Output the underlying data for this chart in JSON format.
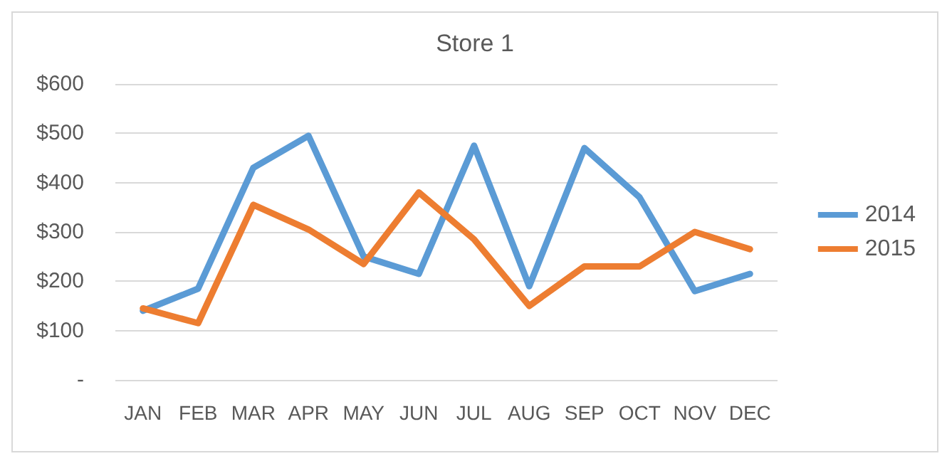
{
  "chart_data": {
    "type": "line",
    "title": "Store 1",
    "categories": [
      "JAN",
      "FEB",
      "MAR",
      "APR",
      "MAY",
      "JUN",
      "JUL",
      "AUG",
      "SEP",
      "OCT",
      "NOV",
      "DEC"
    ],
    "series": [
      {
        "name": "2014",
        "color": "#5b9bd5",
        "values": [
          140,
          185,
          430,
          495,
          250,
          215,
          475,
          190,
          470,
          370,
          180,
          215
        ]
      },
      {
        "name": "2015",
        "color": "#ed7d31",
        "values": [
          145,
          115,
          355,
          305,
          235,
          380,
          285,
          150,
          230,
          230,
          300,
          265
        ]
      }
    ],
    "ylim": [
      0,
      600
    ],
    "yticks": [
      {
        "value": 0,
        "label": "-"
      },
      {
        "value": 100,
        "label": "$100"
      },
      {
        "value": 200,
        "label": "$200"
      },
      {
        "value": 300,
        "label": "$300"
      },
      {
        "value": 400,
        "label": "$400"
      },
      {
        "value": 500,
        "label": "$500"
      },
      {
        "value": 600,
        "label": "$600"
      }
    ],
    "grid": "y",
    "legend": "right",
    "marker": "none",
    "line_style": "solid"
  }
}
